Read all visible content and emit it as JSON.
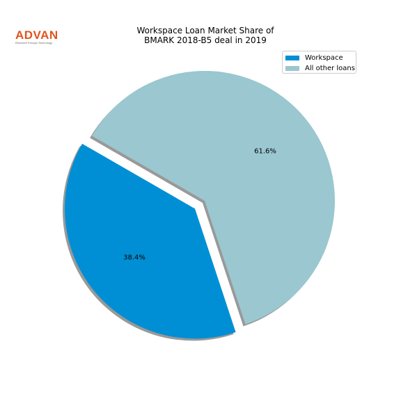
{
  "logo": {
    "word": "ADVAN",
    "tagline": "Research through Technology",
    "color": "#E0541C"
  },
  "chart_data": {
    "type": "pie",
    "title_lines": [
      "Workspace Loan Market Share of",
      "BMARK 2018-B5 deal in 2019"
    ],
    "slices": [
      {
        "label": "Workspace",
        "value": 38.4,
        "value_label": "38.4%",
        "color": "#008FD5",
        "exploded": true
      },
      {
        "label": "All other loans",
        "value": 61.6,
        "value_label": "61.6%",
        "color": "#9AC7D0",
        "exploded": false
      }
    ],
    "start_angle_deg": 150,
    "shadow": true,
    "legend_position": "top-right"
  }
}
